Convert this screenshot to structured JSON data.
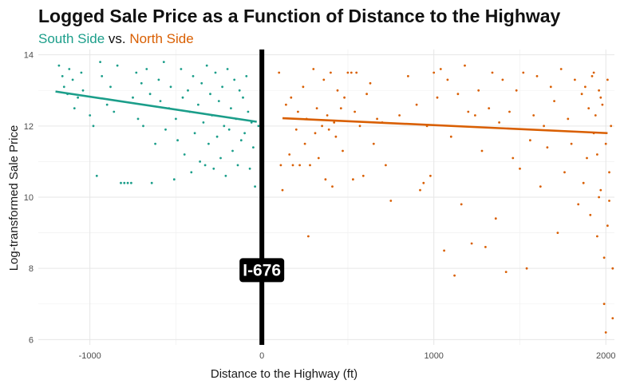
{
  "chart_data": {
    "type": "scatter",
    "title": "Logged Sale Price as a Function of Distance to the Highway",
    "subtitle": {
      "south": "South Side",
      "sep": " vs. ",
      "north": "North Side"
    },
    "xlabel": "Distance to the Highway (ft)",
    "ylabel": "Log-transformed Sale Price",
    "xlim": [
      -1300,
      2050
    ],
    "ylim": [
      5.85,
      14.15
    ],
    "x_ticks": [
      -1000,
      0,
      1000,
      2000
    ],
    "y_ticks": [
      6,
      8,
      10,
      12,
      14
    ],
    "grid": true,
    "highway": {
      "x": 0,
      "label": "I-676",
      "label_y": 7.95
    },
    "colors": {
      "south": "#1b9e8a",
      "north": "#d95f02",
      "highway": "#000000"
    },
    "series": [
      {
        "name": "South Side",
        "fit": {
          "x": [
            -1200,
            -30
          ],
          "y": [
            12.97,
            12.12
          ]
        },
        "points": [
          [
            -1180,
            13.7
          ],
          [
            -1160,
            13.4
          ],
          [
            -1150,
            13.1
          ],
          [
            -1130,
            12.9
          ],
          [
            -1120,
            13.6
          ],
          [
            -1100,
            13.3
          ],
          [
            -1090,
            12.5
          ],
          [
            -1070,
            12.8
          ],
          [
            -1050,
            13.5
          ],
          [
            -1040,
            13.0
          ],
          [
            -1000,
            12.3
          ],
          [
            -980,
            12.0
          ],
          [
            -960,
            10.6
          ],
          [
            -940,
            13.8
          ],
          [
            -930,
            13.4
          ],
          [
            -900,
            12.6
          ],
          [
            -880,
            13.1
          ],
          [
            -860,
            12.4
          ],
          [
            -840,
            13.7
          ],
          [
            -820,
            10.4
          ],
          [
            -800,
            10.4
          ],
          [
            -780,
            10.4
          ],
          [
            -760,
            10.4
          ],
          [
            -750,
            12.8
          ],
          [
            -730,
            13.5
          ],
          [
            -720,
            12.2
          ],
          [
            -700,
            13.2
          ],
          [
            -690,
            12.0
          ],
          [
            -670,
            13.6
          ],
          [
            -650,
            12.9
          ],
          [
            -640,
            10.4
          ],
          [
            -620,
            11.5
          ],
          [
            -600,
            13.3
          ],
          [
            -590,
            12.7
          ],
          [
            -570,
            13.8
          ],
          [
            -560,
            11.9
          ],
          [
            -540,
            12.5
          ],
          [
            -530,
            13.1
          ],
          [
            -510,
            10.5
          ],
          [
            -500,
            12.2
          ],
          [
            -490,
            11.6
          ],
          [
            -470,
            13.6
          ],
          [
            -460,
            12.8
          ],
          [
            -450,
            11.2
          ],
          [
            -430,
            13.0
          ],
          [
            -420,
            12.4
          ],
          [
            -410,
            10.7
          ],
          [
            -400,
            13.4
          ],
          [
            -390,
            11.8
          ],
          [
            -370,
            12.6
          ],
          [
            -360,
            11.0
          ],
          [
            -350,
            13.2
          ],
          [
            -340,
            12.1
          ],
          [
            -330,
            10.9
          ],
          [
            -320,
            13.7
          ],
          [
            -310,
            11.5
          ],
          [
            -300,
            12.9
          ],
          [
            -290,
            12.3
          ],
          [
            -280,
            10.8
          ],
          [
            -270,
            13.5
          ],
          [
            -260,
            11.7
          ],
          [
            -250,
            12.7
          ],
          [
            -240,
            11.1
          ],
          [
            -230,
            13.1
          ],
          [
            -220,
            12.0
          ],
          [
            -210,
            10.6
          ],
          [
            -200,
            13.6
          ],
          [
            -190,
            11.9
          ],
          [
            -180,
            12.5
          ],
          [
            -170,
            11.3
          ],
          [
            -160,
            13.3
          ],
          [
            -150,
            12.2
          ],
          [
            -140,
            10.9
          ],
          [
            -130,
            13.0
          ],
          [
            -120,
            11.6
          ],
          [
            -110,
            12.8
          ],
          [
            -100,
            11.8
          ],
          [
            -90,
            13.4
          ],
          [
            -80,
            12.4
          ],
          [
            -70,
            10.8
          ],
          [
            -60,
            12.1
          ],
          [
            -50,
            11.4
          ],
          [
            -40,
            10.3
          ],
          [
            -20,
            12.0
          ]
        ]
      },
      {
        "name": "North Side",
        "fit": {
          "x": [
            120,
            2010
          ],
          "y": [
            12.22,
            11.8
          ]
        },
        "points": [
          [
            100,
            13.5
          ],
          [
            110,
            10.9
          ],
          [
            120,
            10.2
          ],
          [
            140,
            12.6
          ],
          [
            160,
            11.2
          ],
          [
            170,
            12.8
          ],
          [
            180,
            10.9
          ],
          [
            200,
            11.9
          ],
          [
            210,
            12.4
          ],
          [
            220,
            10.9
          ],
          [
            240,
            13.1
          ],
          [
            250,
            11.5
          ],
          [
            260,
            12.2
          ],
          [
            270,
            8.9
          ],
          [
            280,
            10.9
          ],
          [
            300,
            13.6
          ],
          [
            310,
            11.8
          ],
          [
            320,
            12.5
          ],
          [
            330,
            11.1
          ],
          [
            350,
            12.0
          ],
          [
            360,
            13.3
          ],
          [
            370,
            10.5
          ],
          [
            380,
            12.3
          ],
          [
            390,
            11.9
          ],
          [
            400,
            13.5
          ],
          [
            410,
            10.3
          ],
          [
            420,
            12.1
          ],
          [
            430,
            11.7
          ],
          [
            440,
            13.0
          ],
          [
            460,
            12.5
          ],
          [
            470,
            11.3
          ],
          [
            480,
            12.8
          ],
          [
            500,
            13.5
          ],
          [
            520,
            13.5
          ],
          [
            530,
            10.5
          ],
          [
            540,
            12.4
          ],
          [
            550,
            13.5
          ],
          [
            570,
            12.0
          ],
          [
            590,
            10.6
          ],
          [
            610,
            12.9
          ],
          [
            630,
            13.2
          ],
          [
            650,
            11.5
          ],
          [
            670,
            12.2
          ],
          [
            700,
            12.1
          ],
          [
            720,
            10.9
          ],
          [
            750,
            9.9
          ],
          [
            800,
            12.3
          ],
          [
            850,
            13.4
          ],
          [
            900,
            12.6
          ],
          [
            920,
            10.2
          ],
          [
            940,
            10.4
          ],
          [
            960,
            12.0
          ],
          [
            980,
            10.6
          ],
          [
            1000,
            13.5
          ],
          [
            1020,
            12.8
          ],
          [
            1040,
            13.6
          ],
          [
            1060,
            8.5
          ],
          [
            1080,
            13.3
          ],
          [
            1100,
            11.7
          ],
          [
            1120,
            7.8
          ],
          [
            1140,
            12.9
          ],
          [
            1160,
            9.8
          ],
          [
            1180,
            13.7
          ],
          [
            1200,
            12.4
          ],
          [
            1220,
            8.7
          ],
          [
            1240,
            12.3
          ],
          [
            1260,
            13.0
          ],
          [
            1280,
            11.3
          ],
          [
            1300,
            8.6
          ],
          [
            1320,
            12.5
          ],
          [
            1340,
            13.5
          ],
          [
            1360,
            9.4
          ],
          [
            1380,
            12.1
          ],
          [
            1400,
            13.3
          ],
          [
            1420,
            7.9
          ],
          [
            1440,
            12.4
          ],
          [
            1460,
            11.1
          ],
          [
            1480,
            13.0
          ],
          [
            1500,
            10.8
          ],
          [
            1520,
            13.5
          ],
          [
            1540,
            8.0
          ],
          [
            1560,
            11.6
          ],
          [
            1580,
            12.3
          ],
          [
            1600,
            13.4
          ],
          [
            1620,
            10.3
          ],
          [
            1640,
            12.0
          ],
          [
            1660,
            11.4
          ],
          [
            1680,
            13.1
          ],
          [
            1700,
            12.7
          ],
          [
            1720,
            9.0
          ],
          [
            1740,
            13.6
          ],
          [
            1760,
            10.7
          ],
          [
            1780,
            12.2
          ],
          [
            1800,
            11.5
          ],
          [
            1820,
            13.3
          ],
          [
            1840,
            9.8
          ],
          [
            1860,
            12.9
          ],
          [
            1870,
            10.4
          ],
          [
            1880,
            13.1
          ],
          [
            1890,
            11.1
          ],
          [
            1900,
            12.5
          ],
          [
            1910,
            9.5
          ],
          [
            1920,
            13.4
          ],
          [
            1930,
            11.8
          ],
          [
            1940,
            12.3
          ],
          [
            1950,
            8.9
          ],
          [
            1960,
            13.0
          ],
          [
            1970,
            10.2
          ],
          [
            1980,
            12.6
          ],
          [
            1990,
            7.0
          ],
          [
            2000,
            11.5
          ],
          [
            2010,
            13.3
          ],
          [
            2020,
            9.9
          ],
          [
            2030,
            12.0
          ],
          [
            2040,
            6.6
          ],
          [
            2000,
            6.2
          ],
          [
            1990,
            8.3
          ],
          [
            2020,
            10.7
          ],
          [
            1970,
            12.8
          ],
          [
            1950,
            11.2
          ],
          [
            1930,
            13.5
          ],
          [
            2040,
            8.0
          ],
          [
            2010,
            9.2
          ],
          [
            1960,
            10.0
          ]
        ]
      }
    ]
  }
}
